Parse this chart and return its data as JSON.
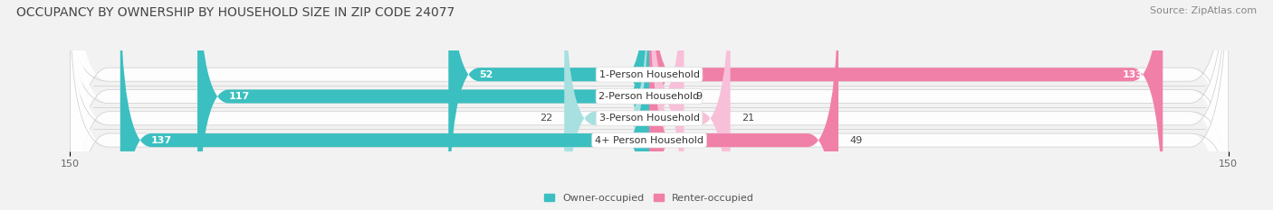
{
  "title": "OCCUPANCY BY OWNERSHIP BY HOUSEHOLD SIZE IN ZIP CODE 24077",
  "source": "Source: ZipAtlas.com",
  "categories": [
    "1-Person Household",
    "2-Person Household",
    "3-Person Household",
    "4+ Person Household"
  ],
  "owner_values": [
    52,
    117,
    22,
    137
  ],
  "renter_values": [
    133,
    9,
    21,
    49
  ],
  "owner_color": "#3BBFC0",
  "renter_color": "#F080A8",
  "owner_color_light": "#A8E0E0",
  "renter_color_light": "#F8C0D8",
  "bg_color": "#f2f2f2",
  "bar_bg_color": "#e2e2e2",
  "x_max": 150,
  "bar_height": 0.62,
  "title_fontsize": 10,
  "source_fontsize": 8,
  "label_fontsize": 8,
  "tick_fontsize": 8,
  "cat_label_fontsize": 8
}
